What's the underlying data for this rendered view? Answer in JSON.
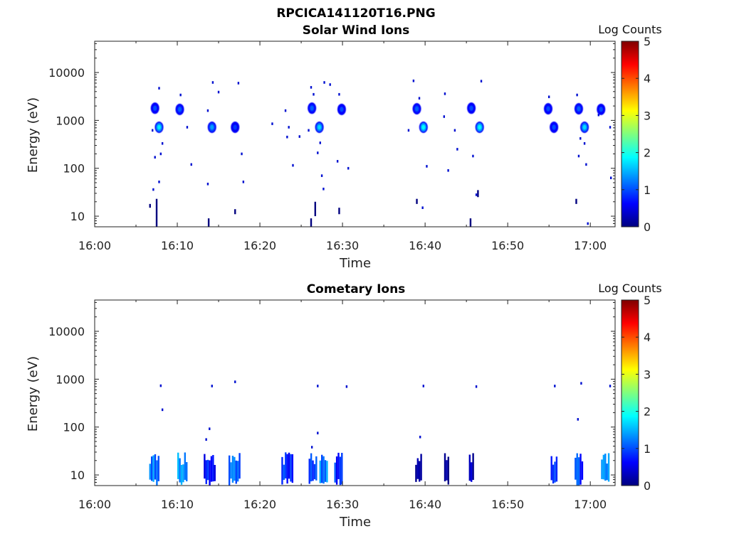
{
  "figure_title": "RPCICA141120T16.PNG",
  "panels": [
    {
      "title": "Solar Wind Ions",
      "xlabel": "Time",
      "ylabel": "Energy (eV)",
      "colorbar_title": "Log Counts"
    },
    {
      "title": "Cometary Ions",
      "xlabel": "Time",
      "ylabel": "Energy (eV)",
      "colorbar_title": "Log Counts"
    }
  ],
  "chart_data": [
    {
      "type": "heatmap",
      "title": "Solar Wind Ions",
      "xlabel": "Time",
      "ylabel": "Energy (eV)",
      "x_range_min": [
        0,
        63
      ],
      "x_ticks": [
        "16:00",
        "16:10",
        "16:20",
        "16:30",
        "16:40",
        "16:50",
        "17:00"
      ],
      "x_tick_values": [
        0,
        10,
        20,
        30,
        40,
        50,
        60
      ],
      "y_scale": "log",
      "y_range": [
        6,
        45000
      ],
      "y_ticks": [
        "10",
        "100",
        "1000",
        "10000"
      ],
      "y_tick_values": [
        10,
        100,
        1000,
        10000
      ],
      "colorbar": {
        "title": "Log Counts",
        "range": [
          0,
          5
        ],
        "ticks": [
          "0",
          "1",
          "2",
          "3",
          "4",
          "5"
        ]
      },
      "blobs": [
        {
          "t": 7.8,
          "e": 720,
          "v": 1.6
        },
        {
          "t": 7.3,
          "e": 1800,
          "v": 0.8
        },
        {
          "t": 10.3,
          "e": 1700,
          "v": 0.9
        },
        {
          "t": 14.2,
          "e": 720,
          "v": 1.2
        },
        {
          "t": 17.0,
          "e": 720,
          "v": 0.7
        },
        {
          "t": 27.2,
          "e": 720,
          "v": 1.5
        },
        {
          "t": 26.3,
          "e": 1800,
          "v": 0.9
        },
        {
          "t": 29.9,
          "e": 1700,
          "v": 0.8
        },
        {
          "t": 39.8,
          "e": 720,
          "v": 1.7
        },
        {
          "t": 39.0,
          "e": 1750,
          "v": 0.9
        },
        {
          "t": 46.6,
          "e": 720,
          "v": 1.7
        },
        {
          "t": 45.6,
          "e": 1800,
          "v": 0.8
        },
        {
          "t": 55.6,
          "e": 720,
          "v": 0.8
        },
        {
          "t": 59.3,
          "e": 720,
          "v": 1.5
        },
        {
          "t": 58.6,
          "e": 1750,
          "v": 0.9
        },
        {
          "t": 61.3,
          "e": 1700,
          "v": 0.8
        },
        {
          "t": 54.9,
          "e": 1750,
          "v": 0.8
        }
      ],
      "sparse_points": [
        {
          "t": 7.8,
          "e": 4700
        },
        {
          "t": 10.4,
          "e": 3400
        },
        {
          "t": 14.3,
          "e": 6200
        },
        {
          "t": 15.0,
          "e": 3900
        },
        {
          "t": 17.4,
          "e": 6000
        },
        {
          "t": 26.2,
          "e": 4900
        },
        {
          "t": 26.5,
          "e": 3500
        },
        {
          "t": 27.8,
          "e": 6200
        },
        {
          "t": 28.5,
          "e": 5600
        },
        {
          "t": 29.6,
          "e": 3500
        },
        {
          "t": 38.6,
          "e": 6700
        },
        {
          "t": 39.3,
          "e": 2900
        },
        {
          "t": 42.4,
          "e": 3600
        },
        {
          "t": 46.8,
          "e": 6600
        },
        {
          "t": 55.0,
          "e": 3100
        },
        {
          "t": 58.4,
          "e": 3400
        },
        {
          "t": 7.0,
          "e": 620
        },
        {
          "t": 8.2,
          "e": 330
        },
        {
          "t": 7.3,
          "e": 170
        },
        {
          "t": 8.0,
          "e": 200
        },
        {
          "t": 11.2,
          "e": 720
        },
        {
          "t": 11.7,
          "e": 120
        },
        {
          "t": 13.7,
          "e": 1600
        },
        {
          "t": 17.8,
          "e": 200
        },
        {
          "t": 21.5,
          "e": 850
        },
        {
          "t": 23.1,
          "e": 1600
        },
        {
          "t": 23.5,
          "e": 720
        },
        {
          "t": 23.3,
          "e": 450
        },
        {
          "t": 24.0,
          "e": 115
        },
        {
          "t": 24.8,
          "e": 460
        },
        {
          "t": 25.9,
          "e": 620
        },
        {
          "t": 27.3,
          "e": 340
        },
        {
          "t": 27.0,
          "e": 210
        },
        {
          "t": 29.4,
          "e": 140
        },
        {
          "t": 30.7,
          "e": 100
        },
        {
          "t": 27.5,
          "e": 70
        },
        {
          "t": 38.0,
          "e": 620
        },
        {
          "t": 40.2,
          "e": 110
        },
        {
          "t": 42.3,
          "e": 1200
        },
        {
          "t": 43.6,
          "e": 620
        },
        {
          "t": 43.9,
          "e": 250
        },
        {
          "t": 42.8,
          "e": 90
        },
        {
          "t": 45.8,
          "e": 180
        },
        {
          "t": 58.8,
          "e": 420
        },
        {
          "t": 59.3,
          "e": 330
        },
        {
          "t": 58.6,
          "e": 180
        },
        {
          "t": 59.5,
          "e": 120
        },
        {
          "t": 61.0,
          "e": 1300
        },
        {
          "t": 62.5,
          "e": 63
        },
        {
          "t": 62.4,
          "e": 720
        },
        {
          "t": 7.8,
          "e": 52
        },
        {
          "t": 13.7,
          "e": 47
        },
        {
          "t": 18.0,
          "e": 52
        },
        {
          "t": 27.7,
          "e": 37
        },
        {
          "t": 7.1,
          "e": 36
        },
        {
          "t": 46.2,
          "e": 28
        },
        {
          "t": 39.7,
          "e": 15
        },
        {
          "t": 59.7,
          "e": 7
        }
      ],
      "vertical_streaks": [
        {
          "t": 6.7,
          "lo": 15,
          "hi": 18
        },
        {
          "t": 7.5,
          "lo": 6,
          "hi": 23
        },
        {
          "t": 13.8,
          "lo": 6,
          "hi": 9
        },
        {
          "t": 17.0,
          "lo": 11,
          "hi": 14
        },
        {
          "t": 26.2,
          "lo": 6,
          "hi": 9
        },
        {
          "t": 26.7,
          "lo": 10,
          "hi": 20
        },
        {
          "t": 29.6,
          "lo": 11,
          "hi": 15
        },
        {
          "t": 39.0,
          "lo": 18,
          "hi": 23
        },
        {
          "t": 45.5,
          "lo": 6,
          "hi": 9
        },
        {
          "t": 46.4,
          "lo": 25,
          "hi": 35
        },
        {
          "t": 58.3,
          "lo": 18,
          "hi": 23
        }
      ]
    },
    {
      "type": "heatmap",
      "title": "Cometary Ions",
      "xlabel": "Time",
      "ylabel": "Energy (eV)",
      "x_range_min": [
        0,
        63
      ],
      "x_ticks": [
        "16:00",
        "16:10",
        "16:20",
        "16:30",
        "16:40",
        "16:50",
        "17:00"
      ],
      "x_tick_values": [
        0,
        10,
        20,
        30,
        40,
        50,
        60
      ],
      "y_scale": "log",
      "y_range": [
        6,
        45000
      ],
      "y_ticks": [
        "10",
        "100",
        "1000",
        "10000"
      ],
      "y_tick_values": [
        10,
        100,
        1000,
        10000
      ],
      "colorbar": {
        "title": "Log Counts",
        "range": [
          0,
          5
        ],
        "ticks": [
          "0",
          "1",
          "2",
          "3",
          "4",
          "5"
        ]
      },
      "sparse_points": [
        {
          "t": 8.0,
          "e": 730
        },
        {
          "t": 14.2,
          "e": 720
        },
        {
          "t": 17.0,
          "e": 880
        },
        {
          "t": 27.0,
          "e": 720
        },
        {
          "t": 30.5,
          "e": 700
        },
        {
          "t": 39.8,
          "e": 720
        },
        {
          "t": 46.2,
          "e": 700
        },
        {
          "t": 55.7,
          "e": 720
        },
        {
          "t": 58.9,
          "e": 820
        },
        {
          "t": 62.4,
          "e": 720
        },
        {
          "t": 8.2,
          "e": 230
        },
        {
          "t": 13.9,
          "e": 92
        },
        {
          "t": 13.5,
          "e": 55
        },
        {
          "t": 26.3,
          "e": 38
        },
        {
          "t": 27.0,
          "e": 75
        },
        {
          "t": 39.4,
          "e": 62
        },
        {
          "t": 58.5,
          "e": 145
        }
      ],
      "low_energy_bands": [
        {
          "t0": 6.6,
          "t1": 7.8,
          "v": 1.2
        },
        {
          "t0": 10.0,
          "t1": 11.1,
          "v": 1.3
        },
        {
          "t0": 13.2,
          "t1": 14.5,
          "v": 0.8
        },
        {
          "t0": 16.2,
          "t1": 17.5,
          "v": 1.2
        },
        {
          "t0": 22.6,
          "t1": 23.9,
          "v": 0.9
        },
        {
          "t0": 25.9,
          "t1": 26.9,
          "v": 0.8
        },
        {
          "t0": 27.2,
          "t1": 28.2,
          "v": 1.3
        },
        {
          "t0": 29.0,
          "t1": 29.9,
          "v": 0.8
        },
        {
          "t0": 38.8,
          "t1": 39.5,
          "v": 0.4
        },
        {
          "t0": 42.3,
          "t1": 42.8,
          "v": 0.3
        },
        {
          "t0": 45.3,
          "t1": 45.9,
          "v": 0.4
        },
        {
          "t0": 55.2,
          "t1": 55.9,
          "v": 0.7
        },
        {
          "t0": 58.1,
          "t1": 59.0,
          "v": 0.9
        },
        {
          "t0": 61.3,
          "t1": 62.2,
          "v": 1.1
        }
      ]
    }
  ]
}
